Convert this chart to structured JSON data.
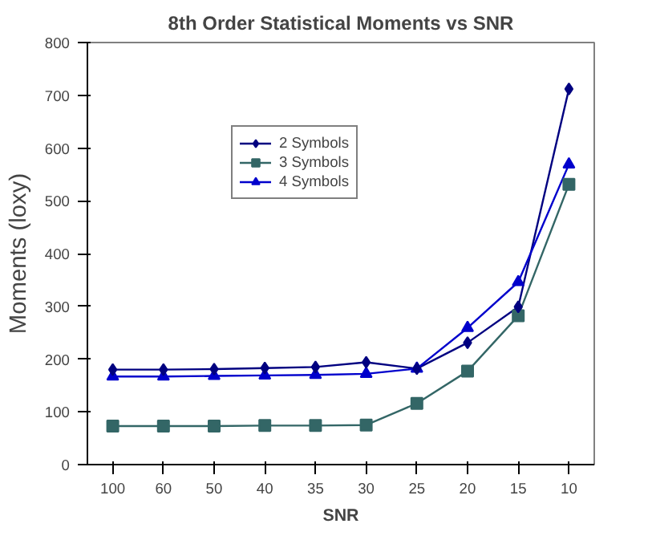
{
  "chart_data": {
    "type": "line",
    "title": "8th Order Statistical Moments vs SNR",
    "xlabel": "SNR",
    "ylabel": "Moments (loxy)",
    "categories": [
      "100",
      "60",
      "50",
      "40",
      "35",
      "30",
      "25",
      "20",
      "15",
      "10"
    ],
    "series": [
      {
        "name": "2 Symbols",
        "color": "#000080",
        "marker": "diamond",
        "values": [
          180,
          180,
          181,
          183,
          185,
          194,
          182,
          231,
          299,
          712
        ]
      },
      {
        "name": "3 Symbols",
        "color": "#336666",
        "marker": "square",
        "values": [
          73,
          73,
          73,
          74,
          74,
          75,
          116,
          177,
          282,
          531
        ]
      },
      {
        "name": "4 Symbols",
        "color": "#0000cc",
        "marker": "triangle",
        "values": [
          167,
          167,
          168,
          169,
          170,
          172,
          182,
          259,
          346,
          569
        ]
      }
    ],
    "ylim": [
      0,
      800
    ],
    "yticks": [
      0,
      100,
      200,
      300,
      400,
      500,
      600,
      700,
      800
    ],
    "grid": false,
    "legend": "top left"
  }
}
